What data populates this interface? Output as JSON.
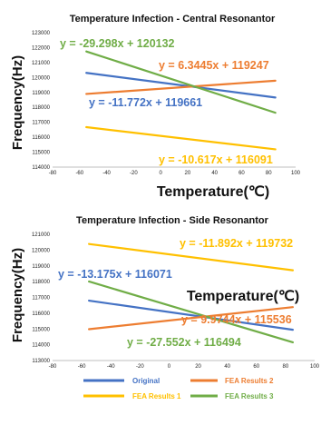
{
  "colors": {
    "Original": "#4472C4",
    "FEA Results 1": "#FFC000",
    "FEA Results 2": "#ED7D31",
    "FEA Results 3": "#70AD47"
  },
  "legend": [
    {
      "name": "Original"
    },
    {
      "name": "FEA Results 2"
    },
    {
      "name": "FEA Results 1"
    },
    {
      "name": "FEA Results 3"
    }
  ],
  "chart_data": [
    {
      "type": "line",
      "title": "Temperature Infection - Central Resonantor",
      "xlabel": "Temperature(℃)",
      "ylabel": "Frequency(Hz)",
      "xlim": [
        -80,
        100
      ],
      "ylim": [
        114000,
        123000
      ],
      "xticks": [
        "-80",
        "-60",
        "-40",
        "-20",
        "0",
        "20",
        "40",
        "60",
        "80",
        "100"
      ],
      "yticks": [
        "114000",
        "115000",
        "116000",
        "117000",
        "118000",
        "119000",
        "120000",
        "121000",
        "122000",
        "123000"
      ],
      "series": [
        {
          "name": "Original",
          "x": [
            -55,
            85
          ],
          "y": [
            120308,
            118660
          ],
          "equation": "y = -11.772x + 119661"
        },
        {
          "name": "FEA Results 1",
          "x": [
            -55,
            85
          ],
          "y": [
            116675,
            115189
          ],
          "equation": "y = -10.617x + 116091"
        },
        {
          "name": "FEA Results 2",
          "x": [
            -55,
            85
          ],
          "y": [
            118898,
            119786
          ],
          "equation": "y = 6.3445x + 119247"
        },
        {
          "name": "FEA Results 3",
          "x": [
            -55,
            85
          ],
          "y": [
            121743,
            117642
          ],
          "equation": "y = -29.298x + 120132"
        }
      ]
    },
    {
      "type": "line",
      "title": "Temperature Infection - Side Resonantor",
      "xlabel": "Temperature(℃)",
      "ylabel": "Frequency(Hz)",
      "xlim": [
        -80,
        100
      ],
      "ylim": [
        113000,
        121000
      ],
      "xticks": [
        "-80",
        "-60",
        "-40",
        "-20",
        "0",
        "20",
        "40",
        "60",
        "80",
        "100"
      ],
      "yticks": [
        "113000",
        "114000",
        "115000",
        "116000",
        "117000",
        "118000",
        "119000",
        "120000",
        "121000"
      ],
      "series": [
        {
          "name": "Original",
          "x": [
            -55,
            85
          ],
          "y": [
            116796,
            114951
          ],
          "equation": "y = -13.175x + 116071"
        },
        {
          "name": "FEA Results 1",
          "x": [
            -55,
            85
          ],
          "y": [
            120386,
            118721
          ],
          "equation": "y = -11.892x + 119732"
        },
        {
          "name": "FEA Results 2",
          "x": [
            -55,
            85
          ],
          "y": [
            114987,
            116384
          ],
          "equation": "y = 9.9744x + 115536"
        },
        {
          "name": "FEA Results 3",
          "x": [
            -55,
            85
          ],
          "y": [
            118009,
            114152
          ],
          "equation": "y = -27.552x + 116494"
        }
      ]
    }
  ]
}
